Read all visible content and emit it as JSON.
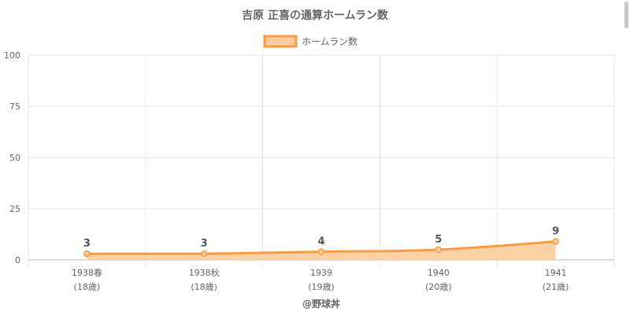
{
  "chart_data": {
    "type": "area",
    "title": "吉原 正喜の通算ホームラン数",
    "categories": [
      "1938春",
      "1938秋",
      "1939",
      "1940",
      "1941"
    ],
    "category_sublabels": [
      "(18歳)",
      "(18歳)",
      "(19歳)",
      "(20歳)",
      "(21歳)"
    ],
    "series": [
      {
        "name": "ホームラン数",
        "values": [
          3,
          3,
          4,
          5,
          9
        ]
      }
    ],
    "data_labels": [
      "3",
      "3",
      "4",
      "5",
      "9"
    ],
    "ylim": [
      0,
      100
    ],
    "yticks": [
      0,
      25,
      50,
      75,
      100
    ],
    "grid": true,
    "legend": "top-center",
    "colors": {
      "line": "#fb9a3f",
      "fill": "#fdcc9c",
      "grid": "#e6e6e6",
      "axis": "#bbbbbb"
    }
  },
  "credit": "@野球丼"
}
